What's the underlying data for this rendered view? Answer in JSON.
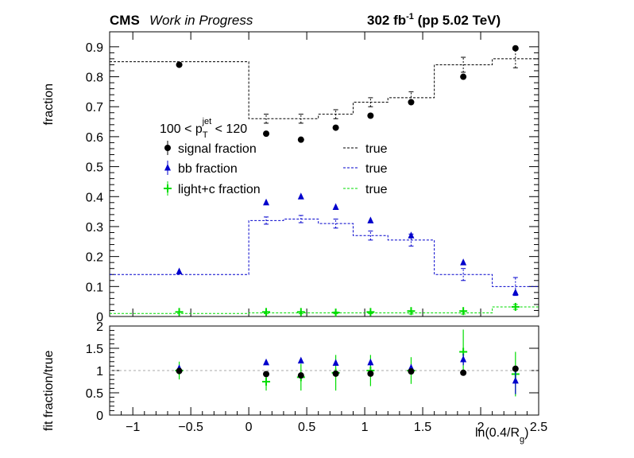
{
  "header": {
    "cms": "CMS",
    "wip": "Work in Progress",
    "lumi_main": "302 fb",
    "lumi_sup": "-1",
    "lumi_rest": " (pp 5.02 TeV)"
  },
  "legend": {
    "title_pre": "100 < p",
    "title_sub": "T",
    "title_sup": "jet",
    "title_post": " < 120",
    "entries": [
      {
        "label": "signal fraction",
        "true_label": "true"
      },
      {
        "label": "bb fraction",
        "true_label": "true"
      },
      {
        "label": "light+c fraction",
        "true_label": "true"
      }
    ]
  },
  "colors": {
    "signal": "#000000",
    "bb": "#0000cc",
    "light": "#00dd00",
    "ratio_line": "#aaaaaa"
  },
  "chart_data": [
    {
      "type": "scatter",
      "panel": "upper",
      "ylabel": "fraction",
      "xlim": [
        -1.2,
        2.5
      ],
      "ylim": [
        0,
        0.95
      ],
      "yticks": [
        "0",
        "0.1",
        "0.2",
        "0.3",
        "0.4",
        "0.5",
        "0.6",
        "0.7",
        "0.8",
        "0.9"
      ],
      "bin_edges": [
        -1.2,
        0.0,
        0.3,
        0.6,
        0.9,
        1.2,
        1.6,
        2.1,
        2.5
      ],
      "bin_centers": [
        -0.6,
        0.15,
        0.45,
        0.75,
        1.05,
        1.4,
        1.85,
        2.3
      ],
      "series": [
        {
          "name": "signal fraction",
          "key": "signal",
          "marker": "circle",
          "values": [
            0.84,
            0.61,
            0.59,
            0.63,
            0.67,
            0.715,
            0.8,
            0.895
          ],
          "true_values": [
            0.85,
            0.66,
            0.66,
            0.675,
            0.715,
            0.73,
            0.84,
            0.86
          ],
          "true_errors": [
            0,
            0.015,
            0.015,
            0.015,
            0.015,
            0.02,
            0.025,
            0.03
          ]
        },
        {
          "name": "bb fraction",
          "key": "bb",
          "marker": "triangle",
          "values": [
            0.15,
            0.38,
            0.4,
            0.365,
            0.32,
            0.27,
            0.18,
            0.08
          ],
          "true_values": [
            0.14,
            0.32,
            0.325,
            0.31,
            0.27,
            0.255,
            0.14,
            0.1
          ],
          "true_errors": [
            0,
            0.012,
            0.012,
            0.015,
            0.015,
            0.02,
            0.02,
            0.03
          ]
        },
        {
          "name": "light+c fraction",
          "key": "light",
          "marker": "cross",
          "values": [
            0.015,
            0.015,
            0.015,
            0.013,
            0.015,
            0.018,
            0.018,
            0.032
          ],
          "true_values": [
            0.01,
            0.012,
            0.012,
            0.012,
            0.012,
            0.012,
            0.012,
            0.032
          ],
          "true_errors": [
            0,
            0.003,
            0.003,
            0.003,
            0.003,
            0.004,
            0.004,
            0.008
          ]
        }
      ]
    },
    {
      "type": "scatter",
      "panel": "lower",
      "ylabel": "fit fraction/true",
      "xlabel_pre": "ln(0.4/R",
      "xlabel_sub": "g",
      "xlabel_post": ")",
      "xlim": [
        -1.2,
        2.5
      ],
      "ylim": [
        0,
        2
      ],
      "yticks": [
        "0",
        "0.5",
        "1",
        "1.5",
        "2"
      ],
      "xticks": [
        "−1",
        "−0.5",
        "0",
        "0.5",
        "1",
        "1.5",
        "2",
        "2.5"
      ],
      "xtick_values": [
        -1,
        -0.5,
        0,
        0.5,
        1,
        1.5,
        2,
        2.5
      ],
      "reference_line": 1,
      "x": [
        -0.6,
        0.15,
        0.45,
        0.75,
        1.05,
        1.4,
        1.85,
        2.3
      ],
      "series": [
        {
          "name": "signal fraction",
          "key": "signal",
          "marker": "circle",
          "values": [
            0.99,
            0.92,
            0.89,
            0.93,
            0.93,
            0.98,
            0.95,
            1.04
          ],
          "errors": [
            0.02,
            0.03,
            0.03,
            0.03,
            0.03,
            0.04,
            0.04,
            0.05
          ]
        },
        {
          "name": "bb fraction",
          "key": "bb",
          "marker": "triangle",
          "values": [
            1.05,
            1.18,
            1.22,
            1.17,
            1.18,
            1.06,
            1.25,
            0.77
          ],
          "errors": [
            0.05,
            0.05,
            0.05,
            0.06,
            0.07,
            0.08,
            0.13,
            0.3
          ]
        },
        {
          "name": "light+c fraction",
          "key": "light",
          "marker": "cross",
          "values": [
            1.0,
            0.75,
            0.85,
            0.95,
            1.0,
            1.0,
            1.42,
            0.92
          ],
          "errors": [
            0.2,
            0.2,
            0.3,
            0.4,
            0.35,
            0.3,
            0.5,
            0.5
          ]
        }
      ]
    }
  ]
}
